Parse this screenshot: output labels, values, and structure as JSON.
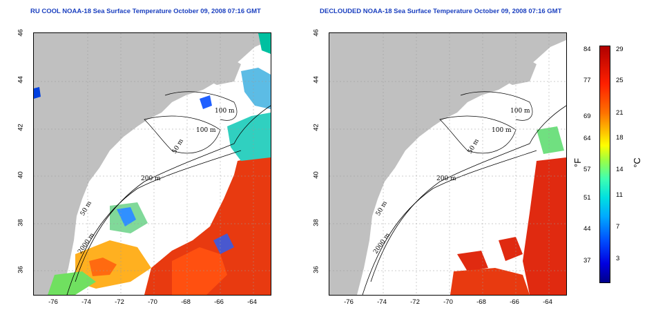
{
  "titles": {
    "left": "RU COOL NOAA-18 Sea Surface Temperature October 09, 2008 07:16 GMT",
    "right": "DECLOUDED NOAA-18 Sea Surface Temperature October 09, 2008 07:16 GMT"
  },
  "axes": {
    "lat_ticks": [
      "46",
      "44",
      "42",
      "40",
      "38",
      "36"
    ],
    "lon_ticks": [
      "-76",
      "-74",
      "-72",
      "-70",
      "-68",
      "-66",
      "-64"
    ]
  },
  "contours": {
    "depth_100_a": "100 m",
    "depth_100_b": "100 m",
    "depth_50_a": "50 m",
    "depth_200": "200 m",
    "depth_50_b": "50 m",
    "depth_2000": "2000 m"
  },
  "colorbar": {
    "fahrenheit": [
      "84",
      "77",
      "69",
      "64",
      "57",
      "51",
      "44",
      "37"
    ],
    "celsius": [
      "29",
      "25",
      "21",
      "18",
      "14",
      "11",
      "7",
      "3"
    ],
    "unit_f": "°F",
    "unit_c": "°C"
  },
  "colors": {
    "land": "#c0c0c0",
    "title": "#1a3fbf",
    "warm": "#ff2000",
    "cool": "#0050ff"
  }
}
